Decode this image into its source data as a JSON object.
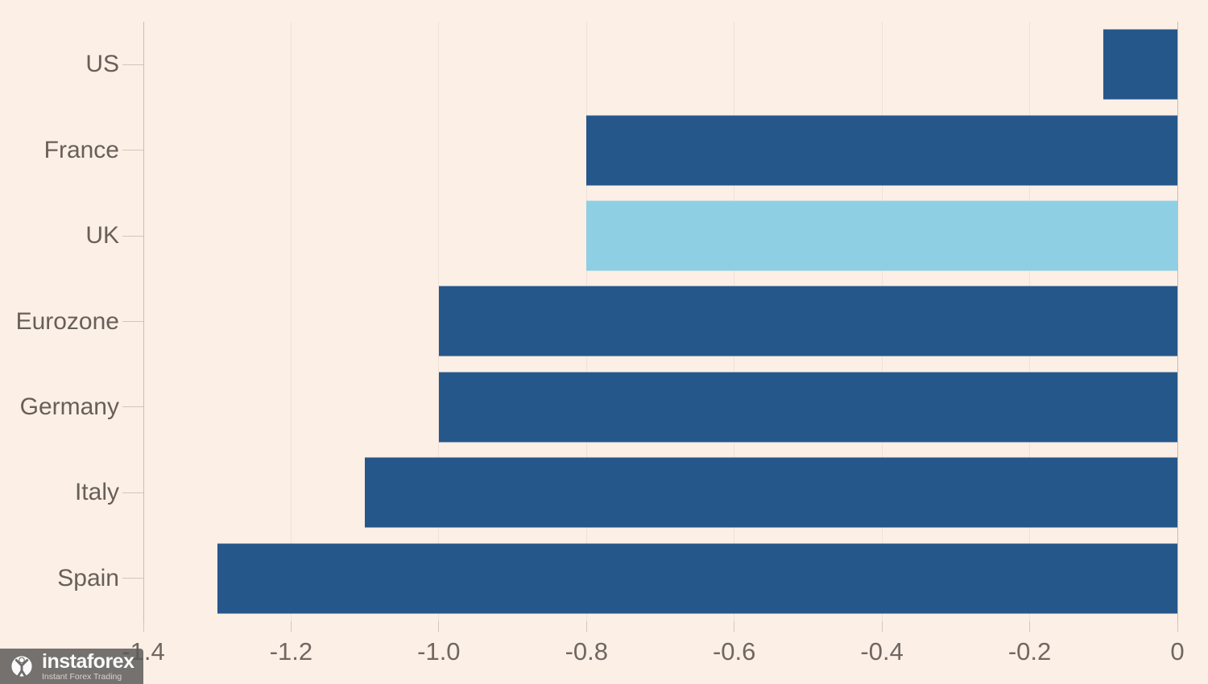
{
  "chart_data": {
    "type": "bar",
    "orientation": "horizontal",
    "title": "",
    "categories": [
      "US",
      "France",
      "UK",
      "Eurozone",
      "Germany",
      "Italy",
      "Spain"
    ],
    "values": [
      -0.1,
      -0.8,
      -0.8,
      -1.0,
      -1.0,
      -1.1,
      -1.3
    ],
    "highlight_category": "UK",
    "xlim": [
      -1.4,
      0
    ],
    "xticks": [
      -1.4,
      -1.2,
      -1.0,
      -0.8,
      -0.6,
      -0.4,
      -0.2,
      0
    ],
    "xtick_labels": [
      "-1.4",
      "-1.2",
      "-1.0",
      "-0.8",
      "-0.6",
      "-0.4",
      "-0.2",
      "0"
    ],
    "grid": "vertical",
    "legend": "none",
    "bar_color": "#25578b",
    "highlight_color": "#8ecfe4",
    "background_color": "#fcefe6"
  },
  "watermark": {
    "brand": "instaforex",
    "tagline": "Instant Forex Trading",
    "icon": "gear-person-icon",
    "box_color": "#5c5a58",
    "accent_strip_color": "#24395c"
  }
}
